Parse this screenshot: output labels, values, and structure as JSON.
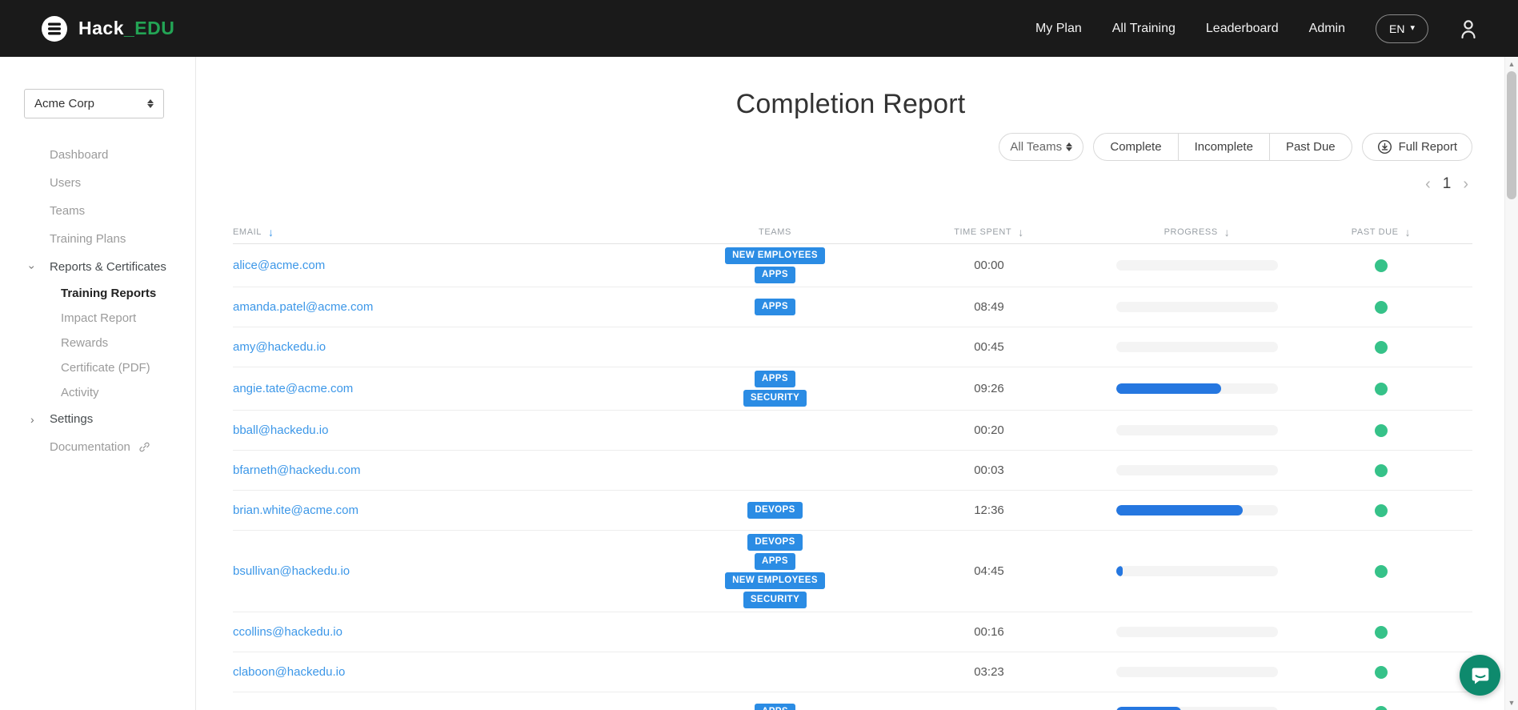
{
  "navbar": {
    "brand": {
      "white": "Hack",
      "green": "_EDU"
    },
    "links": [
      {
        "name": "my-plan",
        "label": "My Plan"
      },
      {
        "name": "all-training",
        "label": "All Training"
      },
      {
        "name": "leaderboard",
        "label": "Leaderboard"
      },
      {
        "name": "admin",
        "label": "Admin"
      }
    ],
    "language": "EN"
  },
  "sidebar": {
    "org_select": "Acme Corp",
    "items": [
      {
        "name": "dashboard",
        "label": "Dashboard"
      },
      {
        "name": "users",
        "label": "Users"
      },
      {
        "name": "teams",
        "label": "Teams"
      },
      {
        "name": "training-plans",
        "label": "Training Plans"
      },
      {
        "name": "reports-certificates",
        "label": "Reports & Certificates",
        "chevron": "down",
        "children": [
          {
            "name": "training-reports",
            "label": "Training Reports",
            "active": true
          },
          {
            "name": "impact-report",
            "label": "Impact Report"
          },
          {
            "name": "rewards",
            "label": "Rewards"
          },
          {
            "name": "certificate-pdf",
            "label": "Certificate (PDF)"
          },
          {
            "name": "activity",
            "label": "Activity"
          }
        ]
      },
      {
        "name": "settings",
        "label": "Settings",
        "chevron": "right"
      },
      {
        "name": "documentation",
        "label": "Documentation",
        "external": true
      }
    ]
  },
  "main": {
    "title": "Completion Report",
    "filters": {
      "team_select": "All Teams",
      "segments": [
        "Complete",
        "Incomplete",
        "Past Due"
      ],
      "full_report_label": "Full Report"
    },
    "pagination": {
      "prev": "‹",
      "page": "1",
      "next": "›"
    }
  },
  "table": {
    "headers": [
      {
        "label": "EMAIL",
        "sortable": true,
        "sort_active": true
      },
      {
        "label": "TEAMS",
        "sortable": false
      },
      {
        "label": "TIME SPENT",
        "sortable": true
      },
      {
        "label": "PROGRESS",
        "sortable": true
      },
      {
        "label": "PAST DUE",
        "sortable": true
      }
    ],
    "rows": [
      {
        "email": "alice@acme.com",
        "teams": [
          "NEW EMPLOYEES",
          "APPS"
        ],
        "time": "00:00",
        "progress": 0,
        "past_due": "none"
      },
      {
        "email": "amanda.patel@acme.com",
        "teams": [
          "APPS"
        ],
        "time": "08:49",
        "progress": 0,
        "past_due": "none"
      },
      {
        "email": "amy@hackedu.io",
        "teams": [],
        "time": "00:45",
        "progress": 0,
        "past_due": "none"
      },
      {
        "email": "angie.tate@acme.com",
        "teams": [
          "APPS",
          "SECURITY"
        ],
        "time": "09:26",
        "progress": 65,
        "past_due": "none"
      },
      {
        "email": "bball@hackedu.io",
        "teams": [],
        "time": "00:20",
        "progress": 0,
        "past_due": "none"
      },
      {
        "email": "bfarneth@hackedu.com",
        "teams": [],
        "time": "00:03",
        "progress": 0,
        "past_due": "none"
      },
      {
        "email": "brian.white@acme.com",
        "teams": [
          "DEVOPS"
        ],
        "time": "12:36",
        "progress": 78,
        "past_due": "none"
      },
      {
        "email": "bsullivan@hackedu.io",
        "teams": [
          "DEVOPS",
          "APPS",
          "NEW EMPLOYEES",
          "SECURITY"
        ],
        "time": "04:45",
        "progress": 4,
        "past_due": "none"
      },
      {
        "email": "ccollins@hackedu.io",
        "teams": [],
        "time": "00:16",
        "progress": 0,
        "past_due": "none"
      },
      {
        "email": "claboon@hackedu.io",
        "teams": [],
        "time": "03:23",
        "progress": 0,
        "past_due": "none"
      },
      {
        "email": "",
        "teams": [
          "APPS"
        ],
        "time": "",
        "progress": 40,
        "past_due": "none"
      }
    ]
  },
  "colors": {
    "accent_blue": "#2b8ce4",
    "progress_blue": "#2577e0",
    "link_blue": "#3c97e8",
    "success_green": "#36c289",
    "brand_green": "#23a455",
    "chat_green": "#0e8a6d",
    "navbar_bg": "#1a1a1a"
  }
}
